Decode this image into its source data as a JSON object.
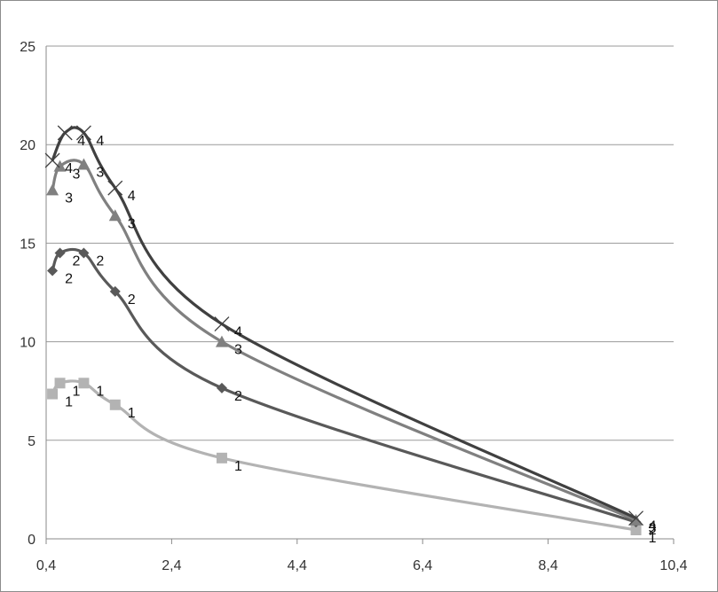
{
  "chart_data": {
    "type": "scatter",
    "title": "",
    "xlabel": "",
    "ylabel": "",
    "xlim": [
      0.4,
      10.4
    ],
    "ylim": [
      0,
      25
    ],
    "x_ticks": [
      "0,4",
      "2,4",
      "4,4",
      "6,4",
      "8,4",
      "10,4"
    ],
    "y_ticks": [
      "0",
      "5",
      "10",
      "15",
      "20",
      "25"
    ],
    "grid": "horizontal",
    "legend": "none",
    "smooth_lines": true,
    "series": [
      {
        "label": "1",
        "color": "#b3b3b3",
        "marker": "square",
        "points": [
          {
            "x": 0.5,
            "y": 7.35
          },
          {
            "x": 0.62,
            "y": 7.9
          },
          {
            "x": 1.0,
            "y": 7.9
          },
          {
            "x": 1.5,
            "y": 6.8
          },
          {
            "x": 3.2,
            "y": 4.1
          },
          {
            "x": 9.8,
            "y": 0.45
          }
        ]
      },
      {
        "label": "2",
        "color": "#595959",
        "marker": "diamond",
        "points": [
          {
            "x": 0.5,
            "y": 13.6
          },
          {
            "x": 0.62,
            "y": 14.5
          },
          {
            "x": 1.0,
            "y": 14.5
          },
          {
            "x": 1.5,
            "y": 12.55
          },
          {
            "x": 3.2,
            "y": 7.65
          },
          {
            "x": 9.8,
            "y": 0.85
          }
        ]
      },
      {
        "label": "3",
        "color": "#808080",
        "marker": "triangle",
        "points": [
          {
            "x": 0.5,
            "y": 17.7
          },
          {
            "x": 0.62,
            "y": 18.9
          },
          {
            "x": 1.0,
            "y": 19.0
          },
          {
            "x": 1.5,
            "y": 16.4
          },
          {
            "x": 3.2,
            "y": 10.0
          },
          {
            "x": 9.8,
            "y": 0.95
          }
        ]
      },
      {
        "label": "4",
        "color": "#404040",
        "marker": "x",
        "points": [
          {
            "x": 0.5,
            "y": 19.2
          },
          {
            "x": 0.7,
            "y": 20.6
          },
          {
            "x": 1.0,
            "y": 20.6
          },
          {
            "x": 1.5,
            "y": 17.8
          },
          {
            "x": 3.2,
            "y": 10.9
          },
          {
            "x": 9.8,
            "y": 1.05
          }
        ]
      }
    ]
  }
}
